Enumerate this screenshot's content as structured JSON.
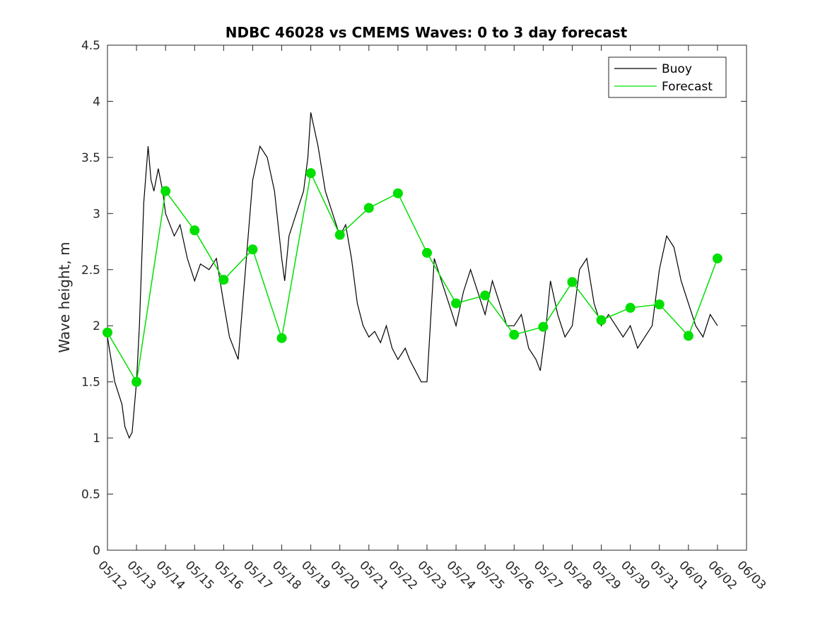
{
  "chart_data": {
    "type": "line",
    "title": "NDBC 46028 vs CMEMS Waves: 0 to 3 day forecast",
    "xlabel": "",
    "ylabel": "Wave height, m",
    "ylim": [
      0,
      4.5
    ],
    "yticks": [
      "0",
      "0.5",
      "1",
      "1.5",
      "2",
      "2.5",
      "3",
      "3.5",
      "4",
      "4.5"
    ],
    "xticks": [
      "05/12",
      "05/13",
      "05/14",
      "05/15",
      "05/16",
      "05/17",
      "05/18",
      "05/19",
      "05/20",
      "05/21",
      "05/22",
      "05/23",
      "05/24",
      "05/25",
      "05/26",
      "05/27",
      "05/28",
      "05/29",
      "05/30",
      "05/31",
      "06/01",
      "06/02",
      "06/03"
    ],
    "xlim_days": [
      0,
      22
    ],
    "grid": false,
    "legend_position": "top-right",
    "colors": {
      "buoy": "#000000",
      "forecast": "#00e000"
    },
    "legend": [
      {
        "label": "Buoy",
        "color": "#000000"
      },
      {
        "label": "Forecast",
        "color": "#00e000"
      }
    ],
    "series": [
      {
        "name": "Buoy",
        "x": [
          0,
          0.25,
          0.5,
          0.6,
          0.75,
          0.85,
          1,
          1.1,
          1.25,
          1.4,
          1.5,
          1.6,
          1.75,
          1.9,
          2,
          2.15,
          2.3,
          2.5,
          2.75,
          3,
          3.2,
          3.5,
          3.75,
          4,
          4.2,
          4.5,
          4.75,
          5,
          5.25,
          5.5,
          5.75,
          6,
          6.1,
          6.25,
          6.5,
          6.75,
          6.9,
          7,
          7.25,
          7.5,
          7.75,
          8,
          8.2,
          8.4,
          8.6,
          8.8,
          9,
          9.2,
          9.4,
          9.6,
          9.8,
          10,
          10.25,
          10.4,
          10.6,
          10.8,
          11,
          11.25,
          11.5,
          11.75,
          12,
          12.25,
          12.5,
          12.75,
          13,
          13.25,
          13.5,
          13.75,
          14,
          14.25,
          14.5,
          14.75,
          14.9,
          15,
          15.1,
          15.25,
          15.5,
          15.75,
          16,
          16.25,
          16.5,
          16.75,
          17,
          17.25,
          17.5,
          17.75,
          18,
          18.25,
          18.5,
          18.75,
          19,
          19.25,
          19.5,
          19.75,
          20,
          20.25,
          20.5,
          20.75,
          21
        ],
        "y": [
          1.9,
          1.5,
          1.3,
          1.1,
          1.0,
          1.05,
          1.5,
          2.0,
          3.1,
          3.6,
          3.3,
          3.2,
          3.4,
          3.2,
          3.0,
          2.9,
          2.8,
          2.9,
          2.6,
          2.4,
          2.55,
          2.5,
          2.6,
          2.2,
          1.9,
          1.7,
          2.5,
          3.3,
          3.6,
          3.5,
          3.2,
          2.6,
          2.4,
          2.8,
          3.0,
          3.2,
          3.5,
          3.9,
          3.6,
          3.2,
          3.0,
          2.8,
          2.9,
          2.6,
          2.2,
          2.0,
          1.9,
          1.95,
          1.85,
          2.0,
          1.8,
          1.7,
          1.8,
          1.7,
          1.6,
          1.5,
          1.5,
          2.6,
          2.4,
          2.2,
          2.0,
          2.3,
          2.5,
          2.3,
          2.1,
          2.4,
          2.2,
          2.0,
          2.0,
          2.1,
          1.8,
          1.7,
          1.6,
          1.8,
          2.0,
          2.4,
          2.1,
          1.9,
          2.0,
          2.5,
          2.6,
          2.2,
          2.0,
          2.1,
          2.0,
          1.9,
          2.0,
          1.8,
          1.9,
          2.0,
          2.5,
          2.8,
          2.7,
          2.4,
          2.2,
          2.0,
          1.9,
          2.1,
          2.0
        ]
      },
      {
        "name": "Forecast",
        "x": [
          0,
          1,
          2,
          3,
          4,
          5,
          6,
          7,
          8,
          9,
          10,
          11,
          12,
          13,
          14,
          15,
          16,
          17,
          18,
          19,
          20,
          21
        ],
        "y": [
          1.94,
          1.5,
          3.2,
          2.85,
          2.41,
          2.68,
          1.89,
          3.36,
          2.81,
          3.05,
          3.18,
          2.65,
          2.2,
          2.27,
          1.92,
          1.99,
          2.39,
          2.05,
          2.16,
          2.19,
          1.91,
          2.6
        ]
      }
    ]
  }
}
